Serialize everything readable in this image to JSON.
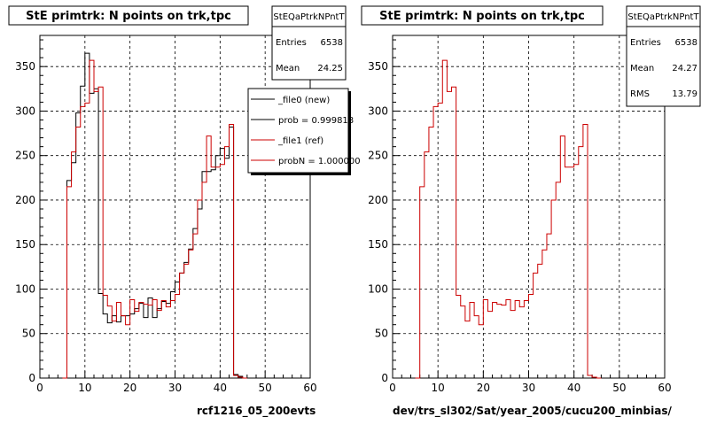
{
  "chart_data": [
    {
      "type": "histogram-step",
      "title": "StE primtrk: N points on trk,tpc",
      "xlim": [
        0,
        60
      ],
      "ylim": [
        0,
        385
      ],
      "xticks": [
        "0",
        "10",
        "20",
        "30",
        "40",
        "50",
        "60"
      ],
      "yticks": [
        "0",
        "50",
        "100",
        "150",
        "200",
        "250",
        "300",
        "350"
      ],
      "footer": "rcf1216_05_200evts",
      "stats": {
        "name": "StEQaPtrkNPntT",
        "entries_label": "Entries",
        "entries_value": "6538",
        "mean_label": "Mean",
        "mean_value": "24.25"
      },
      "legend": [
        {
          "text": "_file0 (new)",
          "color": "#000000"
        },
        {
          "text": "prob = 0.999818",
          "color": "#000000"
        },
        {
          "text": "_file1 (ref)",
          "color": "#cc0000"
        },
        {
          "text": "probN = 1.000000",
          "color": "#cc0000"
        }
      ],
      "bin_width": 1,
      "series": [
        {
          "color": "#000000",
          "x_start": 5,
          "values": [
            0,
            222,
            242,
            298,
            328,
            365,
            320,
            325,
            95,
            72,
            62,
            70,
            63,
            70,
            70,
            72,
            78,
            84,
            68,
            90,
            68,
            78,
            86,
            84,
            97,
            108,
            118,
            130,
            145,
            168,
            190,
            232,
            232,
            234,
            250,
            258,
            247,
            282,
            4,
            2,
            0
          ]
        },
        {
          "color": "#cc0000",
          "x_start": 5,
          "values": [
            0,
            215,
            254,
            282,
            305,
            309,
            357,
            322,
            327,
            93,
            81,
            64,
            85,
            70,
            60,
            88,
            75,
            85,
            83,
            82,
            88,
            76,
            87,
            80,
            87,
            94,
            118,
            128,
            144,
            162,
            200,
            220,
            272,
            237,
            237,
            240,
            260,
            285,
            3,
            1,
            0
          ]
        }
      ]
    },
    {
      "type": "histogram-step",
      "title": "StE primtrk: N points on trk,tpc",
      "xlim": [
        0,
        60
      ],
      "ylim": [
        0,
        385
      ],
      "xticks": [
        "0",
        "10",
        "20",
        "30",
        "40",
        "50",
        "60"
      ],
      "yticks": [
        "0",
        "50",
        "100",
        "150",
        "200",
        "250",
        "300",
        "350"
      ],
      "footer": "dev/trs_sl302/Sat/year_2005/cucu200_minbias/",
      "stats": {
        "name": "StEQaPtrkNPntT",
        "entries_label": "Entries",
        "entries_value": "6538",
        "mean_label": "Mean",
        "mean_value": "24.27",
        "rms_label": "RMS",
        "rms_value": "13.79"
      },
      "bin_width": 1,
      "series": [
        {
          "color": "#cc0000",
          "x_start": 5,
          "values": [
            0,
            215,
            254,
            282,
            305,
            309,
            357,
            322,
            327,
            93,
            81,
            64,
            85,
            70,
            60,
            88,
            75,
            85,
            83,
            82,
            88,
            76,
            87,
            80,
            87,
            94,
            118,
            128,
            144,
            162,
            200,
            220,
            272,
            237,
            237,
            240,
            260,
            285,
            3,
            1,
            0
          ]
        }
      ]
    }
  ]
}
